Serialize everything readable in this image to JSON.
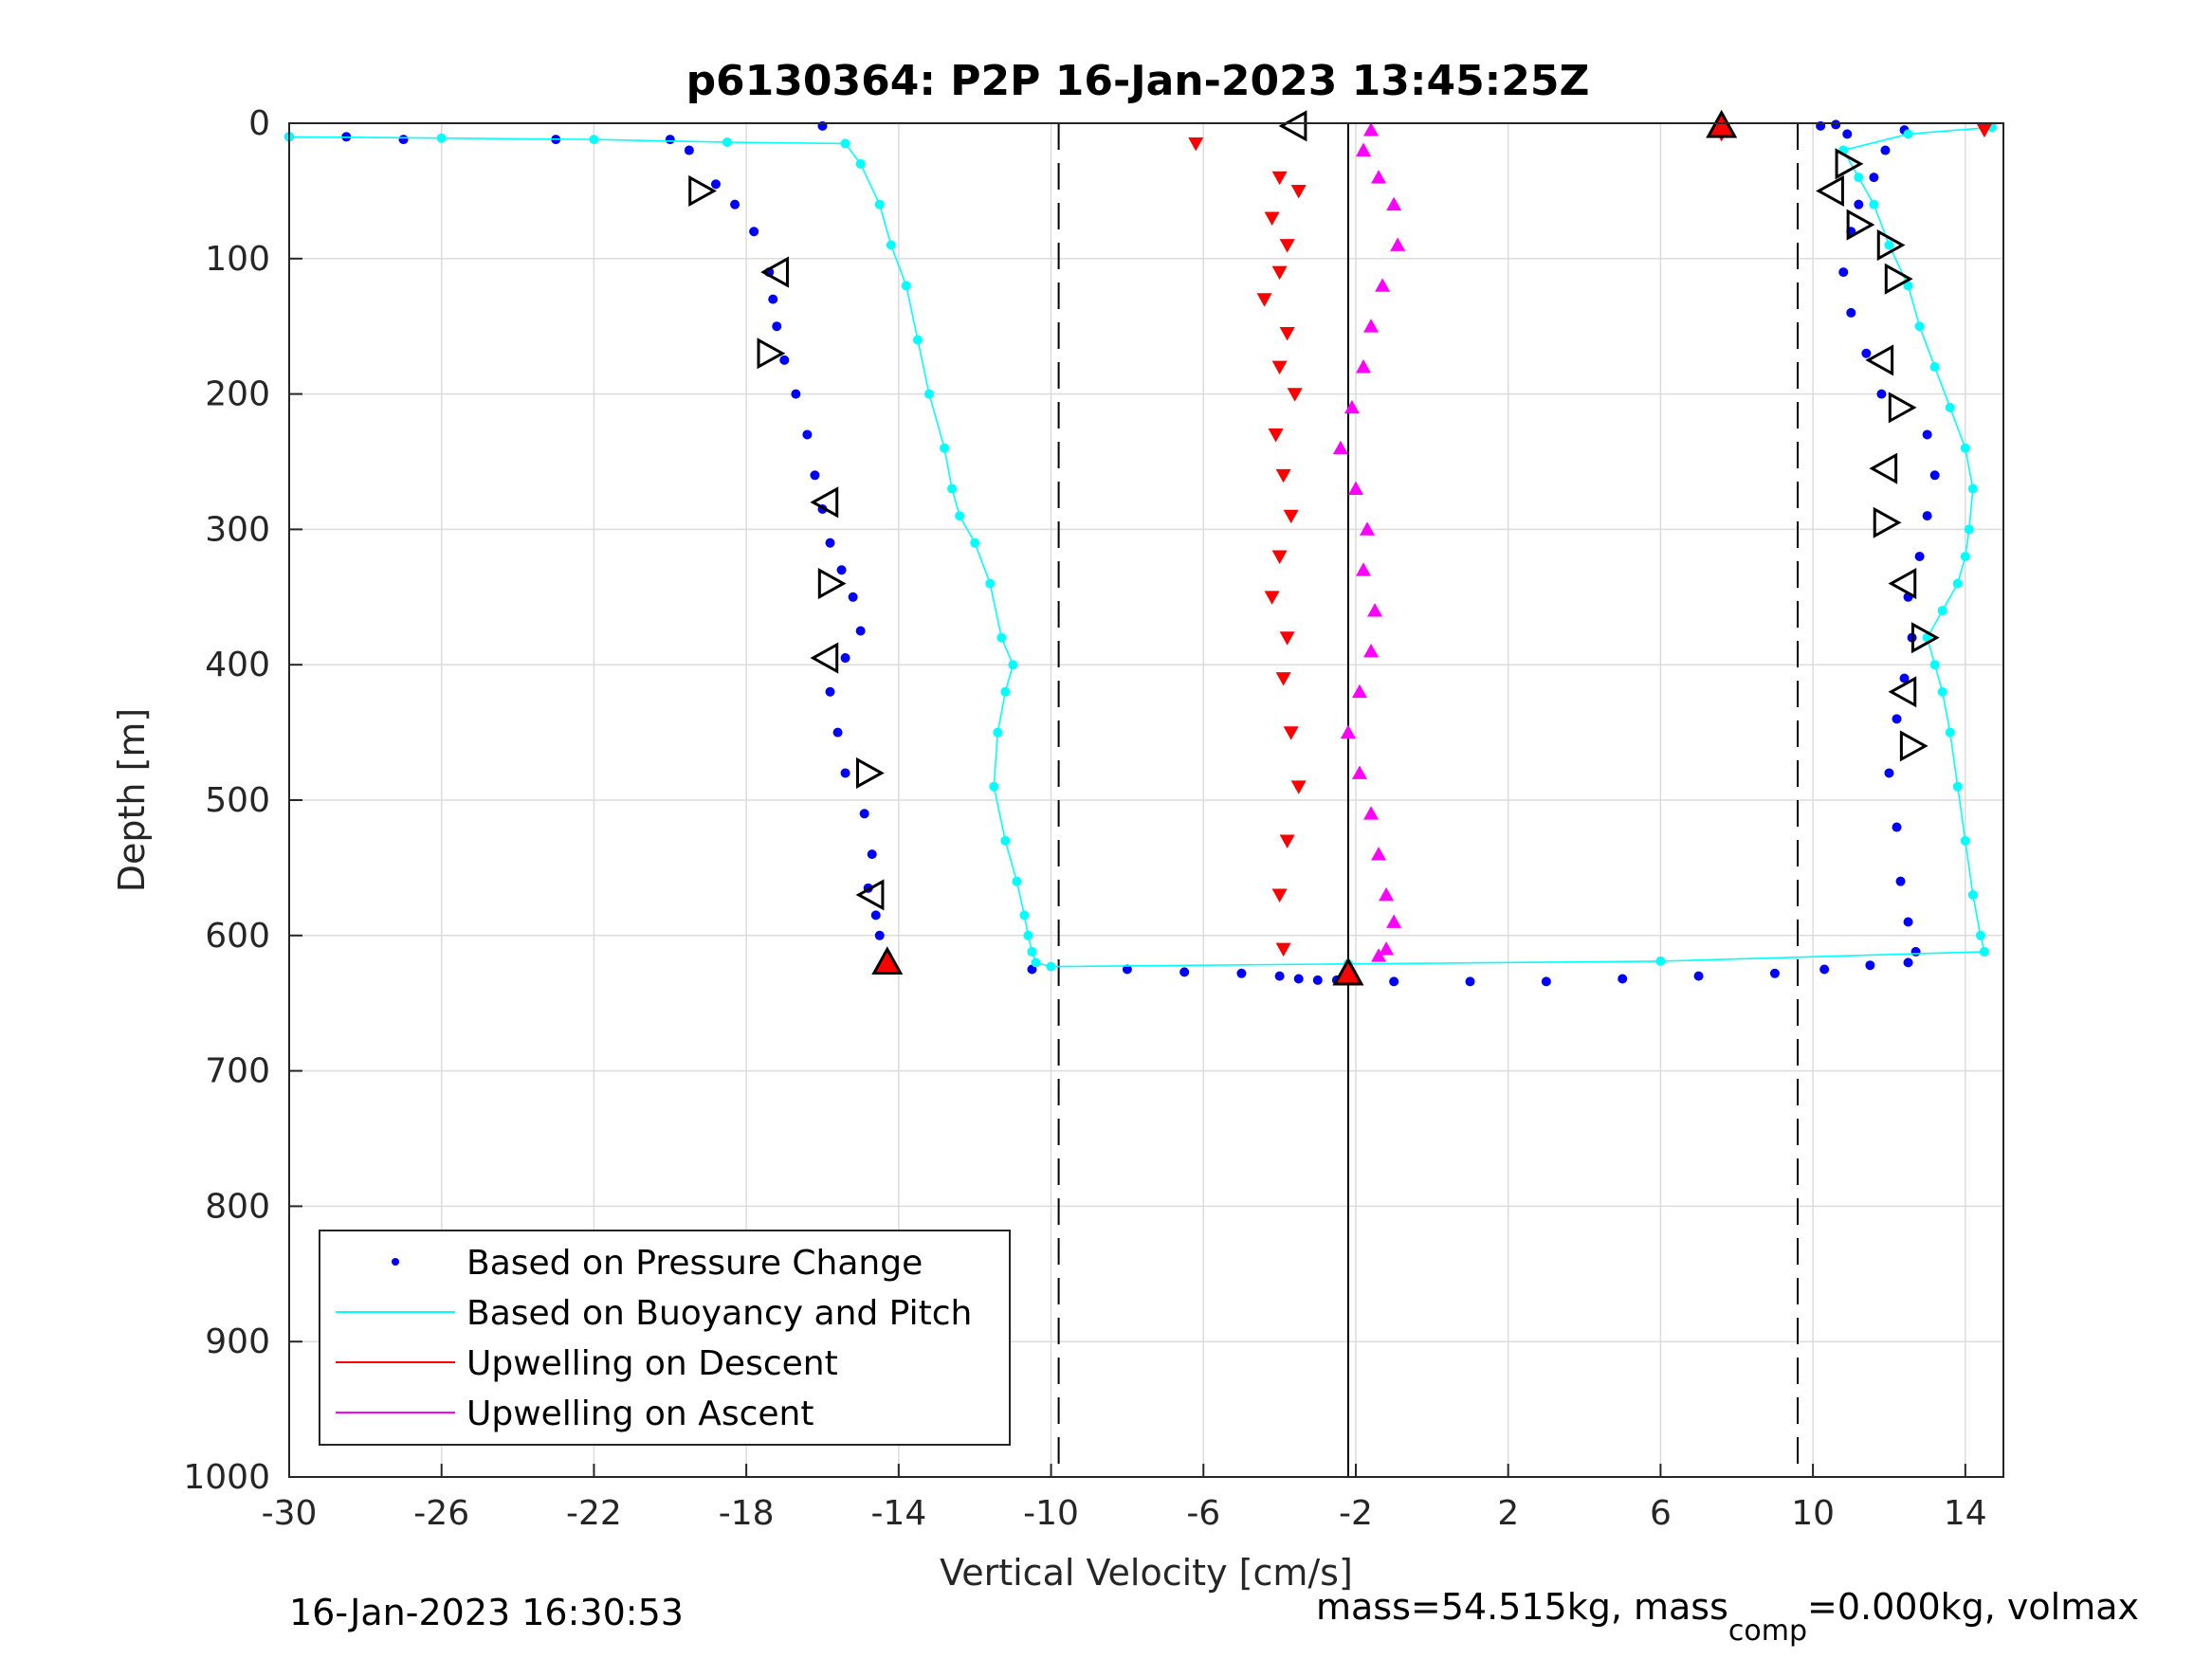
{
  "chart_data": {
    "type": "scatter",
    "title": "p6130364: P2P 16-Jan-2023 13:45:25Z",
    "xlabel": "Vertical Velocity [cm/s]",
    "ylabel": "Depth [m]",
    "xlim": [
      -30,
      15
    ],
    "ylim": [
      0,
      1000
    ],
    "y_reversed": true,
    "grid": true,
    "xticks": [
      -30,
      -26,
      -22,
      -18,
      -14,
      -10,
      -6,
      -2,
      2,
      6,
      10,
      14
    ],
    "yticks": [
      0,
      100,
      200,
      300,
      400,
      500,
      600,
      700,
      800,
      900,
      1000
    ],
    "reference_lines": {
      "dashed_x": [
        -9.8,
        9.6
      ],
      "solid_x": [
        -2.2
      ]
    },
    "legend_position": "bottom-left",
    "legend": [
      "Based on Pressure Change",
      "Based on Buoyancy and Pitch",
      "Upwelling on Descent",
      "Upwelling on Ascent"
    ],
    "series": [
      {
        "name": "Based on Pressure Change",
        "style": "dots",
        "color": "#0000ff",
        "x": [
          -30,
          -28.5,
          -27,
          -23,
          -20,
          -19.5,
          -18.8,
          -18.3,
          -17.8,
          -17.4,
          -17.3,
          -17.2,
          -17.0,
          -16.7,
          -16.4,
          -16.2,
          -16.0,
          -15.8,
          -15.5,
          -15.2,
          -15.0,
          -15.4,
          -15.8,
          -15.6,
          -15.4,
          -14.9,
          -14.7,
          -14.8,
          -14.6,
          -14.5,
          -14.3,
          -14.2,
          -16,
          -10.5,
          -8,
          -6.5,
          -5,
          -4,
          -3.5,
          -3,
          -2.5,
          -1,
          1,
          3,
          5,
          7,
          9,
          10.3,
          11.5,
          12.5,
          12.7,
          12.5,
          12.3,
          12.2,
          12.0,
          12.2,
          12.4,
          12.6,
          12.5,
          12.8,
          13.0,
          13.2,
          13.0,
          11.8,
          11.4,
          11.0,
          10.8,
          11.0,
          11.2,
          11.6,
          11.9,
          12.4,
          10.9,
          10.2,
          10.6
        ],
        "y": [
          10,
          10,
          12,
          12,
          12,
          20,
          45,
          60,
          80,
          110,
          130,
          150,
          175,
          200,
          230,
          260,
          285,
          310,
          330,
          350,
          375,
          395,
          420,
          450,
          480,
          510,
          540,
          565,
          585,
          600,
          615,
          625,
          2,
          625,
          625,
          627,
          628,
          630,
          632,
          633,
          633,
          634,
          634,
          634,
          632,
          630,
          628,
          625,
          622,
          620,
          612,
          590,
          560,
          520,
          480,
          440,
          410,
          380,
          350,
          320,
          290,
          260,
          230,
          200,
          170,
          140,
          110,
          80,
          60,
          40,
          20,
          5,
          8,
          2,
          1
        ]
      },
      {
        "name": "Based on Buoyancy and Pitch",
        "style": "line-dots",
        "color": "#00ffff",
        "x": [
          -30,
          -26,
          -22,
          -18.5,
          -15.4,
          -15.0,
          -14.5,
          -14.2,
          -13.8,
          -13.5,
          -13.2,
          -12.8,
          -12.6,
          -12.4,
          -12.0,
          -11.6,
          -11.3,
          -11.0,
          -11.2,
          -11.4,
          -11.5,
          -11.2,
          -10.9,
          -10.7,
          -10.6,
          -10.5,
          -10.4,
          -10,
          -2.2,
          6,
          14.5,
          14.4,
          14.2,
          14.0,
          13.8,
          13.6,
          13.4,
          13.2,
          13.0,
          13.4,
          13.8,
          14.0,
          14.1,
          14.2,
          14.0,
          13.6,
          13.2,
          12.8,
          12.5,
          12.0,
          11.6,
          11.2,
          10.8,
          12.5,
          14.7
        ],
        "y": [
          10,
          11,
          12,
          14,
          15,
          30,
          60,
          90,
          120,
          160,
          200,
          240,
          270,
          290,
          310,
          340,
          380,
          400,
          420,
          450,
          490,
          530,
          560,
          585,
          600,
          612,
          620,
          623,
          621,
          619,
          612,
          600,
          570,
          530,
          490,
          450,
          420,
          400,
          380,
          360,
          340,
          320,
          300,
          270,
          240,
          210,
          180,
          150,
          120,
          90,
          60,
          40,
          20,
          8,
          3
        ]
      },
      {
        "name": "Upwelling on Descent",
        "style": "down-triangles",
        "color": "#ff0000",
        "x": [
          -6.2,
          7.6,
          14.5,
          -4.0,
          -3.5,
          -4.2,
          -3.8,
          -4.0,
          -4.4,
          -3.8,
          -4.0,
          -3.6,
          -4.1,
          -3.9,
          -3.7,
          -4.0,
          -4.2,
          -3.8,
          -3.9,
          -3.7,
          -3.5,
          -3.8,
          -4.0,
          -3.9
        ],
        "y": [
          15,
          8,
          5,
          40,
          50,
          70,
          90,
          110,
          130,
          155,
          180,
          200,
          230,
          260,
          290,
          320,
          350,
          380,
          410,
          450,
          490,
          530,
          570,
          610
        ]
      },
      {
        "name": "Upwelling on Ascent",
        "style": "up-triangles",
        "color": "#ff00ff",
        "x": [
          -1.6,
          -1.8,
          -1.4,
          -1.0,
          -0.9,
          -1.3,
          -1.6,
          -1.8,
          -2.1,
          -2.4,
          -2.0,
          -1.7,
          -1.8,
          -1.5,
          -1.6,
          -1.9,
          -2.2,
          -1.9,
          -1.6,
          -1.4,
          -1.2,
          -1.0,
          -1.2,
          -1.4
        ],
        "y": [
          5,
          20,
          40,
          60,
          90,
          120,
          150,
          180,
          210,
          240,
          270,
          300,
          330,
          360,
          390,
          420,
          450,
          480,
          510,
          540,
          570,
          590,
          610,
          615
        ]
      }
    ],
    "markers": {
      "right_triangles": [
        {
          "x": -19.2,
          "y": 50
        },
        {
          "x": -17.4,
          "y": 170
        },
        {
          "x": -15.8,
          "y": 340
        },
        {
          "x": -14.8,
          "y": 480
        },
        {
          "x": 11.2,
          "y": 75
        },
        {
          "x": 12.2,
          "y": 115
        },
        {
          "x": 12.3,
          "y": 210
        },
        {
          "x": 11.9,
          "y": 295
        },
        {
          "x": 12.9,
          "y": 380
        },
        {
          "x": 12.6,
          "y": 460
        },
        {
          "x": 10.9,
          "y": 30
        },
        {
          "x": 12.0,
          "y": 90
        }
      ],
      "left_triangles": [
        {
          "x": -3.6,
          "y": 2
        },
        {
          "x": -17.2,
          "y": 110
        },
        {
          "x": -15.9,
          "y": 280
        },
        {
          "x": -15.9,
          "y": 395
        },
        {
          "x": -14.7,
          "y": 570
        },
        {
          "x": 10.5,
          "y": 50
        },
        {
          "x": 11.8,
          "y": 175
        },
        {
          "x": 11.9,
          "y": 255
        },
        {
          "x": 12.4,
          "y": 340
        },
        {
          "x": 12.4,
          "y": 420
        }
      ],
      "red_up_triangles": [
        {
          "x": 7.6,
          "y": 2
        },
        {
          "x": -14.3,
          "y": 620
        },
        {
          "x": -2.2,
          "y": 628
        }
      ]
    }
  },
  "footer": {
    "timestamp": "16-Jan-2023 16:30:53",
    "mass_prefix": "mass=54.515kg, mass",
    "mass_sub": "comp",
    "mass_suffix": "=0.000kg, volmax"
  }
}
